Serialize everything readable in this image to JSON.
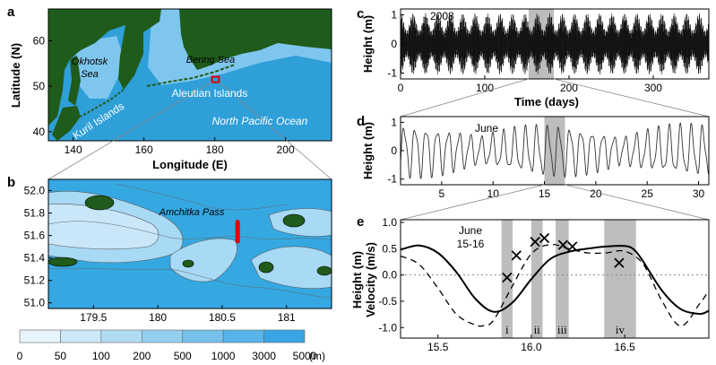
{
  "panel_a": {
    "letter": "a",
    "xlabel": "Longitude (E)",
    "ylabel": "Latitude (N)",
    "xticks": [
      140,
      160,
      180,
      200
    ],
    "yticks": [
      40,
      50,
      60
    ],
    "xlim": [
      133,
      213
    ],
    "ylim": [
      38,
      67
    ],
    "labels": {
      "okhotsk1": "Okhotsk",
      "okhotsk2": "Sea",
      "bering": "Bering Sea",
      "aleutian": "Aleutian Islands",
      "kuril": "Kuril Islands",
      "pacific": "North Pacific Ocean"
    },
    "box_location": {
      "lon": [
        179.2,
        181.2
      ],
      "lat": [
        50.9,
        52.1
      ]
    },
    "colors": {
      "land": "#1f5b1b",
      "ocean": "#2f9fd8",
      "box": "#e00000"
    }
  },
  "panel_b": {
    "letter": "b",
    "xticks": [
      "179.5",
      "180",
      "180.5",
      "181"
    ],
    "yticks": [
      "51.0",
      "51.2",
      "51.4",
      "51.6",
      "51.8",
      "52.0"
    ],
    "xlim": [
      179.15,
      181.35
    ],
    "ylim": [
      50.95,
      52.1
    ],
    "pass_label": "Amchitka Pass",
    "transect": {
      "lon": 180.62,
      "lat": [
        51.55,
        51.72
      ]
    },
    "colors": {
      "land": "#1f5b1b",
      "transect": "#e00000"
    }
  },
  "colorbar": {
    "tick_labels": [
      "0",
      "50",
      "100",
      "200",
      "500",
      "1000",
      "3000",
      "5000"
    ],
    "unit": "(m)",
    "colors": [
      "#e8f4fc",
      "#cde8f8",
      "#b2dcf4",
      "#94cff0",
      "#76c1ec",
      "#58b3e8",
      "#3aa5e4"
    ]
  },
  "chart_data": [
    {
      "panel": "c",
      "type": "line",
      "annotation": "2008",
      "xlabel": "Time (days)",
      "ylabel": "Height (m)",
      "xlim": [
        0,
        366
      ],
      "ylim": [
        -1.2,
        1.2
      ],
      "xticks": [
        0,
        100,
        200,
        300
      ],
      "yticks": [
        -1,
        0,
        1
      ],
      "highlight": [
        152,
        182
      ],
      "envelope_note": "full-year tidal height, amplitude 0.5–1.1 m with spring–neap modulation"
    },
    {
      "panel": "d",
      "type": "line",
      "annotation": "June",
      "ylabel": "Height (m)",
      "xlim": [
        1,
        31
      ],
      "ylim": [
        -1.2,
        1.2
      ],
      "xticks": [
        5,
        10,
        15,
        20,
        25,
        30
      ],
      "yticks": [
        -1,
        0,
        1
      ],
      "highlight": [
        15,
        17
      ]
    },
    {
      "panel": "e",
      "type": "line",
      "annotation_line1": "June",
      "annotation_line2": "15-16",
      "ylabel_outer": "Height (m)",
      "ylabel_inner": "Velocity (m/s)",
      "xlim": [
        15.3,
        16.95
      ],
      "ylim": [
        -1.2,
        1.05
      ],
      "xticks": [
        "15.5",
        "16.0",
        "16.5"
      ],
      "xtick_values": [
        15.5,
        16.0,
        16.5
      ],
      "yticks": [
        "-1.0",
        "-0.5",
        "0.0",
        "0.5",
        "1.0"
      ],
      "ytick_values": [
        -1.0,
        -0.5,
        0.0,
        0.5,
        1.0
      ],
      "velocity_x": [
        15.3,
        15.4,
        15.5,
        15.6,
        15.7,
        15.8,
        15.9,
        16.0,
        16.1,
        16.2,
        16.3,
        16.4,
        16.5,
        16.55,
        16.6,
        16.7,
        16.8,
        16.9,
        16.95
      ],
      "velocity_y": [
        0.48,
        0.56,
        0.42,
        0.05,
        -0.45,
        -0.7,
        -0.52,
        -0.08,
        0.3,
        0.44,
        0.5,
        0.54,
        0.55,
        0.48,
        0.25,
        -0.3,
        -0.65,
        -0.74,
        -0.68
      ],
      "height_x": [
        15.3,
        15.4,
        15.5,
        15.6,
        15.7,
        15.75,
        15.8,
        15.9,
        16.0,
        16.1,
        16.2,
        16.3,
        16.4,
        16.5,
        16.6,
        16.7,
        16.8,
        16.9,
        16.95
      ],
      "height_y": [
        0.36,
        0.2,
        -0.25,
        -0.75,
        -0.95,
        -0.96,
        -0.85,
        -0.2,
        0.4,
        0.58,
        0.5,
        0.42,
        0.42,
        0.45,
        0.2,
        -0.5,
        -0.97,
        -0.55,
        -0.3
      ],
      "markers_x": [
        15.87,
        15.92,
        16.02,
        16.07,
        16.17,
        16.22,
        16.47
      ],
      "markers_y": [
        -0.05,
        0.37,
        0.63,
        0.7,
        0.57,
        0.54,
        0.23
      ],
      "bands": [
        {
          "label": "i",
          "range": [
            15.84,
            15.9
          ]
        },
        {
          "label": "ii",
          "range": [
            16.0,
            16.06
          ]
        },
        {
          "label": "iii",
          "range": [
            16.13,
            16.2
          ]
        },
        {
          "label": "iv",
          "range": [
            16.39,
            16.56
          ]
        }
      ]
    }
  ]
}
